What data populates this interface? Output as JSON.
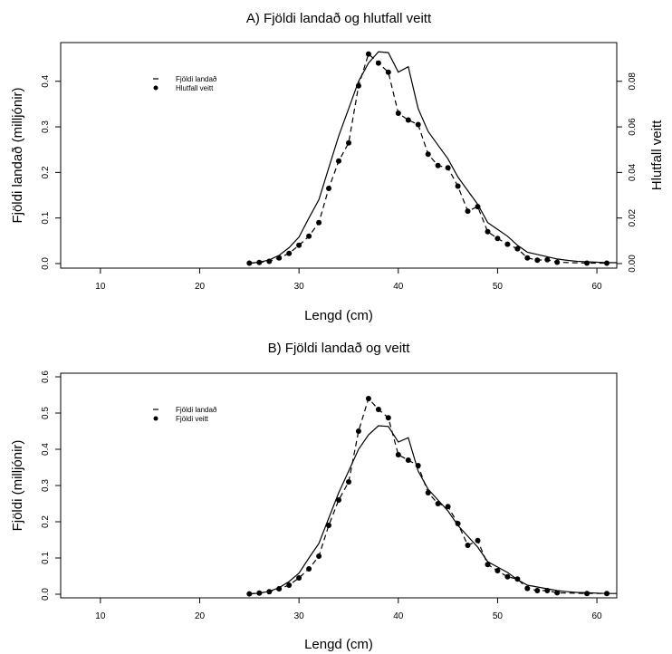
{
  "chart_data": [
    {
      "type": "line",
      "title": "A) Fjöldi landað og hlutfall veitt",
      "xlabel": "Lengd (cm)",
      "ylabel": "Fjöldi landað (milljónir)",
      "y2label": "Hlutfall veitt",
      "xlim": [
        6,
        62
      ],
      "ylim": [
        -0.01,
        0.485
      ],
      "y2lim": [
        -0.002,
        0.097
      ],
      "xticks": [
        "10",
        "20",
        "30",
        "40",
        "50",
        "60"
      ],
      "yticks": [
        "0.0",
        "0.1",
        "0.2",
        "0.3",
        "0.4"
      ],
      "y2ticks": [
        "0.00",
        "0.02",
        "0.04",
        "0.06",
        "0.08"
      ],
      "legend": {
        "position": "top-left",
        "entries": [
          "Fjöldi landað",
          "Hlutfall veitt"
        ]
      },
      "series": [
        {
          "name": "Fjöldi landað",
          "style": "solid-line",
          "axis": "left",
          "x": [
            25,
            26,
            27,
            28,
            29,
            30,
            31,
            32,
            33,
            34,
            35,
            36,
            37,
            38,
            39,
            40,
            41,
            42,
            43,
            44,
            45,
            46,
            47,
            48,
            49,
            50,
            51,
            52,
            53,
            54,
            55,
            56,
            57,
            58,
            59,
            60,
            61,
            62
          ],
          "values": [
            0.001,
            0.003,
            0.008,
            0.018,
            0.035,
            0.058,
            0.1,
            0.14,
            0.21,
            0.28,
            0.34,
            0.4,
            0.44,
            0.465,
            0.463,
            0.42,
            0.432,
            0.34,
            0.29,
            0.26,
            0.23,
            0.19,
            0.16,
            0.13,
            0.09,
            0.075,
            0.06,
            0.04,
            0.025,
            0.02,
            0.015,
            0.01,
            0.007,
            0.005,
            0.004,
            0.003,
            0.002,
            0.002
          ]
        },
        {
          "name": "Hlutfall veitt",
          "style": "dashed-line-with-points",
          "axis": "right",
          "x": [
            25,
            26,
            27,
            28,
            29,
            30,
            31,
            32,
            33,
            34,
            35,
            36,
            37,
            38,
            39,
            40,
            41,
            42,
            43,
            44,
            45,
            46,
            47,
            48,
            49,
            50,
            51,
            52,
            53,
            54,
            55,
            56,
            59,
            61
          ],
          "values": [
            0.0002,
            0.0005,
            0.001,
            0.0025,
            0.0045,
            0.008,
            0.012,
            0.018,
            0.033,
            0.045,
            0.053,
            0.078,
            0.092,
            0.088,
            0.084,
            0.066,
            0.063,
            0.061,
            0.048,
            0.043,
            0.042,
            0.034,
            0.023,
            0.025,
            0.014,
            0.011,
            0.0085,
            0.0065,
            0.0025,
            0.0015,
            0.0017,
            0.0006,
            0.0002,
            0.0002
          ]
        }
      ]
    },
    {
      "type": "line",
      "title": "B) Fjöldi landað og veitt",
      "xlabel": "Lengd (cm)",
      "ylabel": "Fjöldi (milljónir)",
      "xlim": [
        6,
        62
      ],
      "ylim": [
        -0.01,
        0.61
      ],
      "xticks": [
        "10",
        "20",
        "30",
        "40",
        "50",
        "60"
      ],
      "yticks": [
        "0.0",
        "0.1",
        "0.2",
        "0.3",
        "0.4",
        "0.5",
        "0.6"
      ],
      "legend": {
        "position": "top-left",
        "entries": [
          "Fjöldi landað",
          "Fjöldi veitt"
        ]
      },
      "series": [
        {
          "name": "Fjöldi landað",
          "style": "solid-line",
          "x": [
            25,
            26,
            27,
            28,
            29,
            30,
            31,
            32,
            33,
            34,
            35,
            36,
            37,
            38,
            39,
            40,
            41,
            42,
            43,
            44,
            45,
            46,
            47,
            48,
            49,
            50,
            51,
            52,
            53,
            54,
            55,
            56,
            57,
            58,
            59,
            60,
            61,
            62
          ],
          "values": [
            0.001,
            0.003,
            0.008,
            0.018,
            0.035,
            0.058,
            0.1,
            0.14,
            0.21,
            0.28,
            0.34,
            0.4,
            0.44,
            0.465,
            0.463,
            0.42,
            0.432,
            0.34,
            0.29,
            0.26,
            0.23,
            0.19,
            0.16,
            0.13,
            0.09,
            0.075,
            0.06,
            0.04,
            0.025,
            0.02,
            0.015,
            0.01,
            0.007,
            0.005,
            0.004,
            0.003,
            0.002,
            0.002
          ]
        },
        {
          "name": "Fjöldi veitt",
          "style": "dashed-line-with-points",
          "x": [
            25,
            26,
            27,
            28,
            29,
            30,
            31,
            32,
            33,
            34,
            35,
            36,
            37,
            38,
            39,
            40,
            41,
            42,
            43,
            44,
            45,
            46,
            47,
            48,
            49,
            50,
            51,
            52,
            53,
            54,
            55,
            56,
            59,
            61
          ],
          "values": [
            0.001,
            0.003,
            0.007,
            0.015,
            0.025,
            0.045,
            0.07,
            0.105,
            0.19,
            0.26,
            0.31,
            0.45,
            0.54,
            0.51,
            0.487,
            0.385,
            0.37,
            0.355,
            0.28,
            0.25,
            0.242,
            0.195,
            0.135,
            0.148,
            0.082,
            0.065,
            0.048,
            0.042,
            0.016,
            0.01,
            0.01,
            0.004,
            0.002,
            0.002
          ]
        }
      ]
    }
  ]
}
